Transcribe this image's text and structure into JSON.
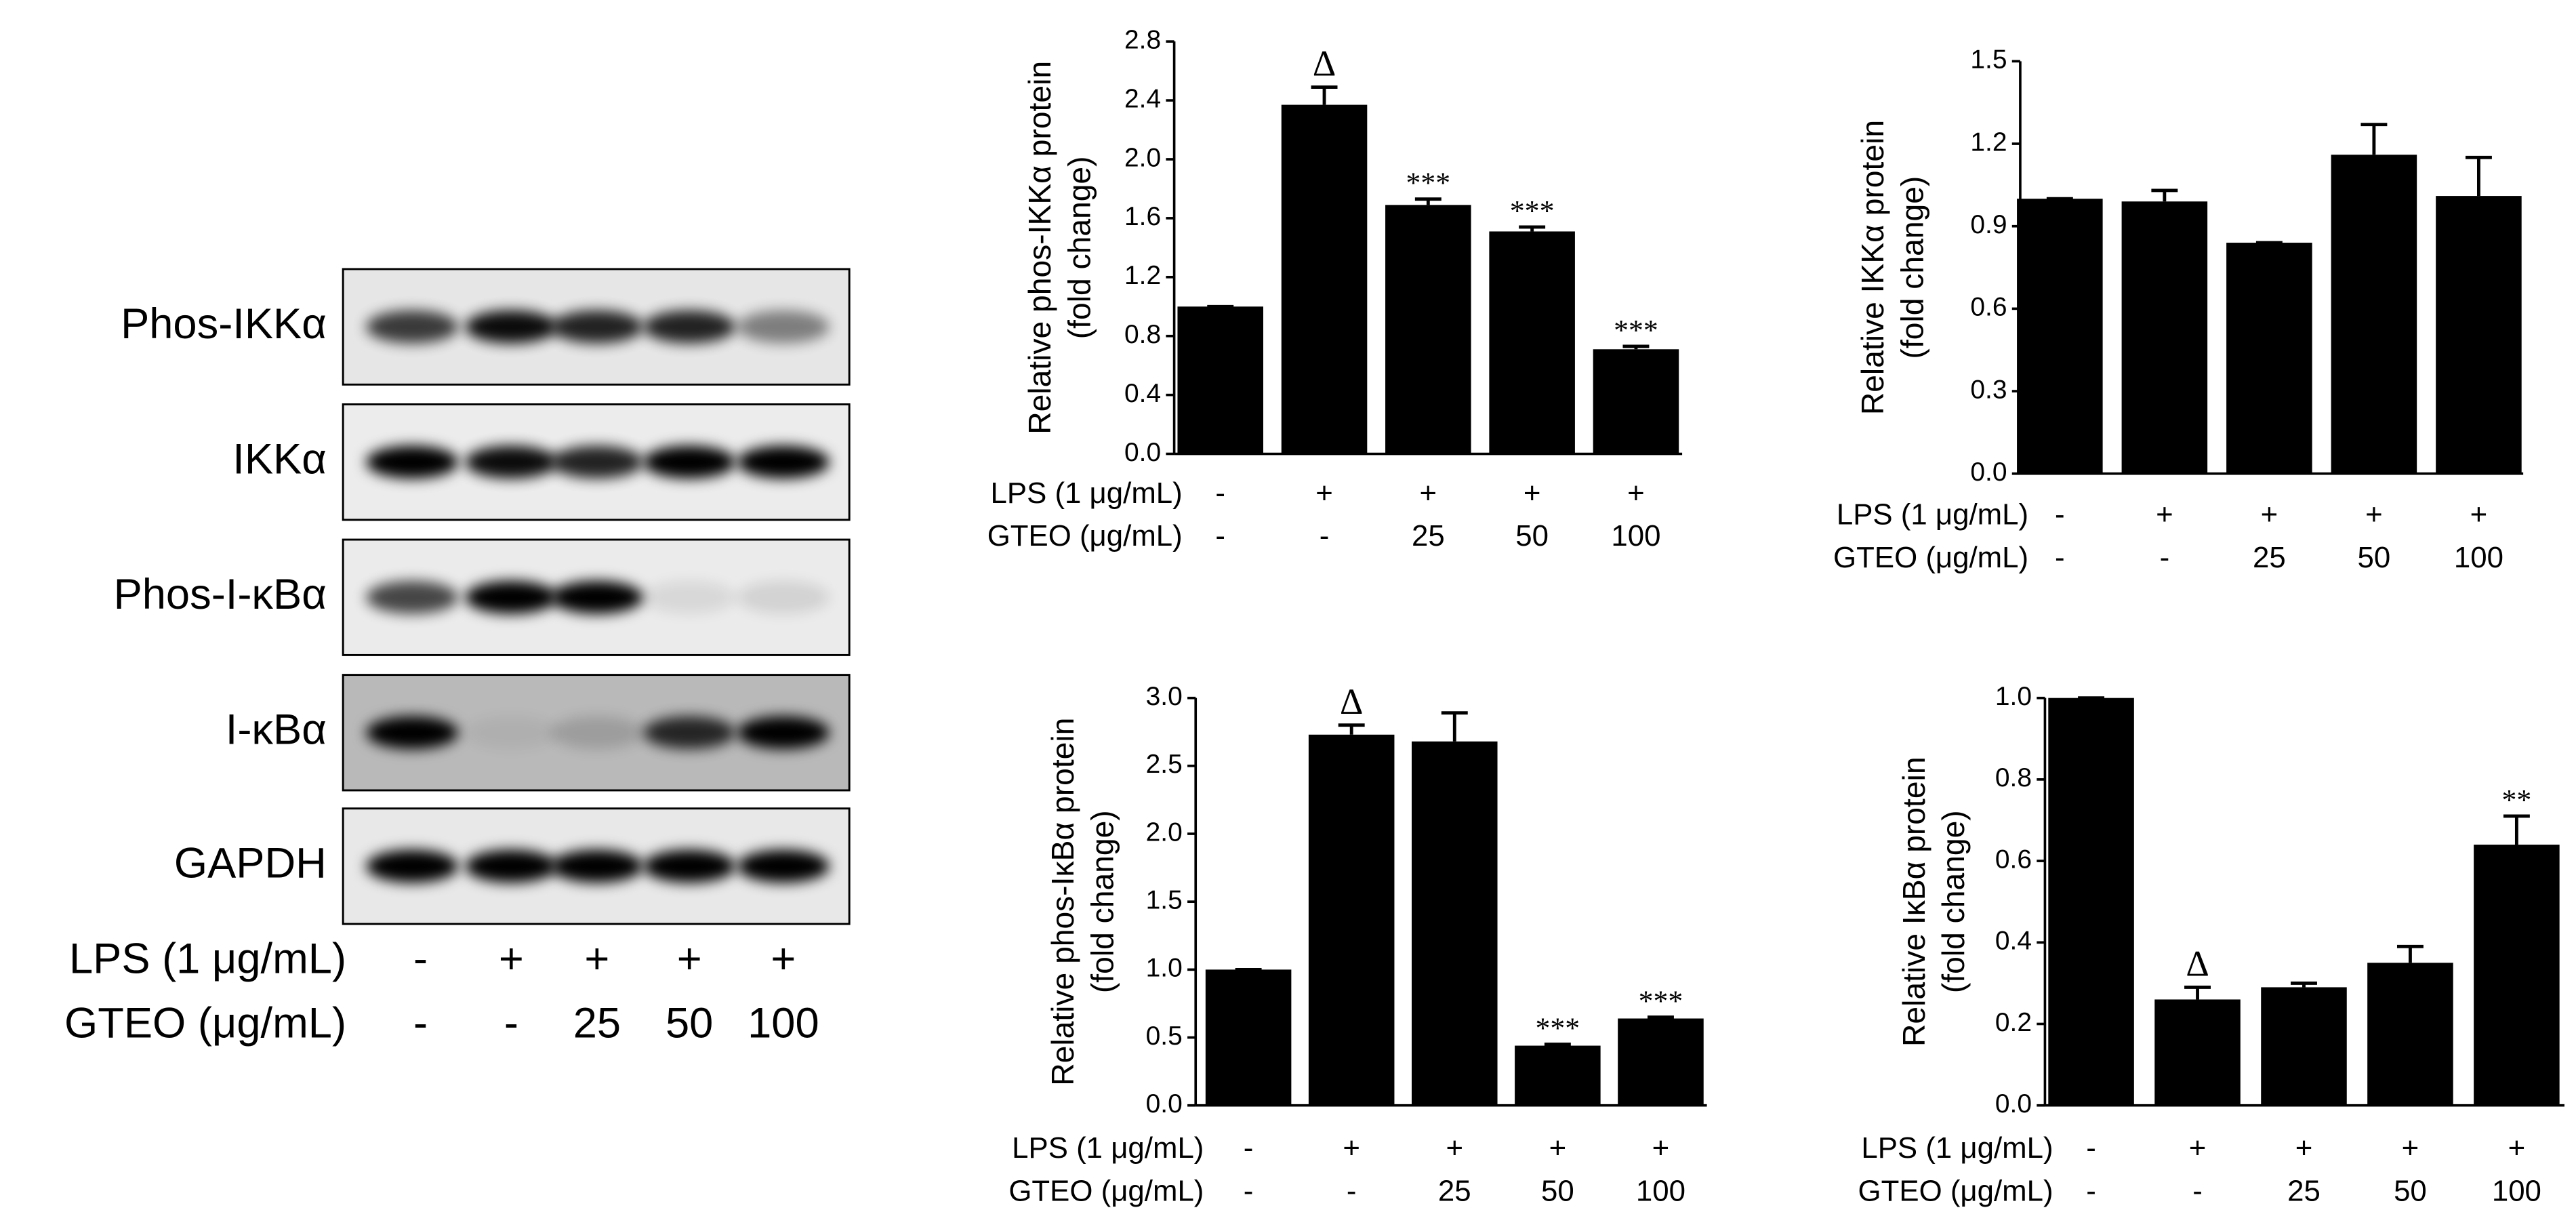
{
  "blot": {
    "proteins": [
      "Phos-IKKα",
      "IKKα",
      "Phos-I-κBα",
      "I-κBα",
      "GAPDH"
    ],
    "treatments": [
      {
        "name": "LPS (1 μg/mL)",
        "levels": [
          "-",
          "+",
          "+",
          "+",
          "+"
        ]
      },
      {
        "name": "GTEO (μg/mL)",
        "levels": [
          "-",
          "-",
          "25",
          "50",
          "100"
        ]
      }
    ]
  },
  "chart_data": [
    {
      "type": "bar",
      "ylabel": [
        "Relative phos-IKKα protein",
        "(fold change)"
      ],
      "color": "#000000",
      "treatments": [
        {
          "name": "LPS (1 μg/mL)",
          "levels": [
            "-",
            "+",
            "+",
            "+",
            "+"
          ]
        },
        {
          "name": "GTEO (μg/mL)",
          "levels": [
            "-",
            "-",
            "25",
            "50",
            "100"
          ]
        }
      ],
      "values": [
        1.0,
        2.37,
        1.69,
        1.51,
        0.71
      ],
      "errors": [
        0,
        0.12,
        0.04,
        0.03,
        0.02
      ],
      "annotations": [
        null,
        "Δ",
        "***",
        "***",
        "***"
      ],
      "ylim": [
        0,
        2.8
      ],
      "yticks": [
        {
          "value": 0,
          "label": "0.0"
        },
        0.4,
        0.8,
        1.2,
        1.6,
        {
          "value": 2,
          "label": "2.0"
        },
        2.4,
        2.8
      ]
    },
    {
      "type": "bar",
      "ylabel": [
        "Relative IKKα protein",
        "(fold change)"
      ],
      "color": "#000000",
      "treatments": [
        {
          "name": "LPS (1 μg/mL)",
          "levels": [
            "-",
            "+",
            "+",
            "+",
            "+"
          ]
        },
        {
          "name": "GTEO (μg/mL)",
          "levels": [
            "-",
            "-",
            "25",
            "50",
            "100"
          ]
        }
      ],
      "values": [
        1.0,
        0.99,
        0.84,
        1.16,
        1.01
      ],
      "errors": [
        0,
        0.04,
        0,
        0.11,
        0.14
      ],
      "annotations": [
        null,
        null,
        null,
        null,
        null
      ],
      "ylim": [
        0,
        1.5
      ],
      "yticks": [
        {
          "value": 0,
          "label": "0.0"
        },
        0.3,
        0.6,
        0.9,
        1.2,
        1.5
      ]
    },
    {
      "type": "bar",
      "ylabel": [
        "Relative phos-IκBα protein",
        "(fold change)"
      ],
      "color": "#000000",
      "treatments": [
        {
          "name": "LPS (1 μg/mL)",
          "levels": [
            "-",
            "+",
            "+",
            "+",
            "+"
          ]
        },
        {
          "name": "GTEO (μg/mL)",
          "levels": [
            "-",
            "-",
            "25",
            "50",
            "100"
          ]
        }
      ],
      "values": [
        1.0,
        2.73,
        2.68,
        0.44,
        0.64
      ],
      "errors": [
        0,
        0.07,
        0.21,
        0.01,
        0.01
      ],
      "annotations": [
        null,
        "Δ",
        null,
        "***",
        "***"
      ],
      "ylim": [
        0,
        3
      ],
      "yticks": [
        {
          "value": 0,
          "label": "0.0"
        },
        0.5,
        {
          "value": 1,
          "label": "1.0"
        },
        1.5,
        {
          "value": 2,
          "label": "2.0"
        },
        2.5,
        {
          "value": 3,
          "label": "3.0"
        }
      ]
    },
    {
      "type": "bar",
      "ylabel": [
        "Relative IκBα protein",
        "(fold change)"
      ],
      "color": "#000000",
      "treatments": [
        {
          "name": "LPS (1 μg/mL)",
          "levels": [
            "-",
            "+",
            "+",
            "+",
            "+"
          ]
        },
        {
          "name": "GTEO (μg/mL)",
          "levels": [
            "-",
            "-",
            "25",
            "50",
            "100"
          ]
        }
      ],
      "values": [
        1.0,
        0.26,
        0.29,
        0.35,
        0.64
      ],
      "errors": [
        0,
        0.03,
        0.01,
        0.04,
        0.07
      ],
      "annotations": [
        null,
        "Δ",
        null,
        null,
        "**"
      ],
      "ylim": [
        0,
        1
      ],
      "yticks": [
        {
          "value": 0,
          "label": "0.0"
        },
        0.2,
        0.4,
        0.6,
        0.8,
        {
          "value": 1,
          "label": "1.0"
        }
      ]
    }
  ]
}
